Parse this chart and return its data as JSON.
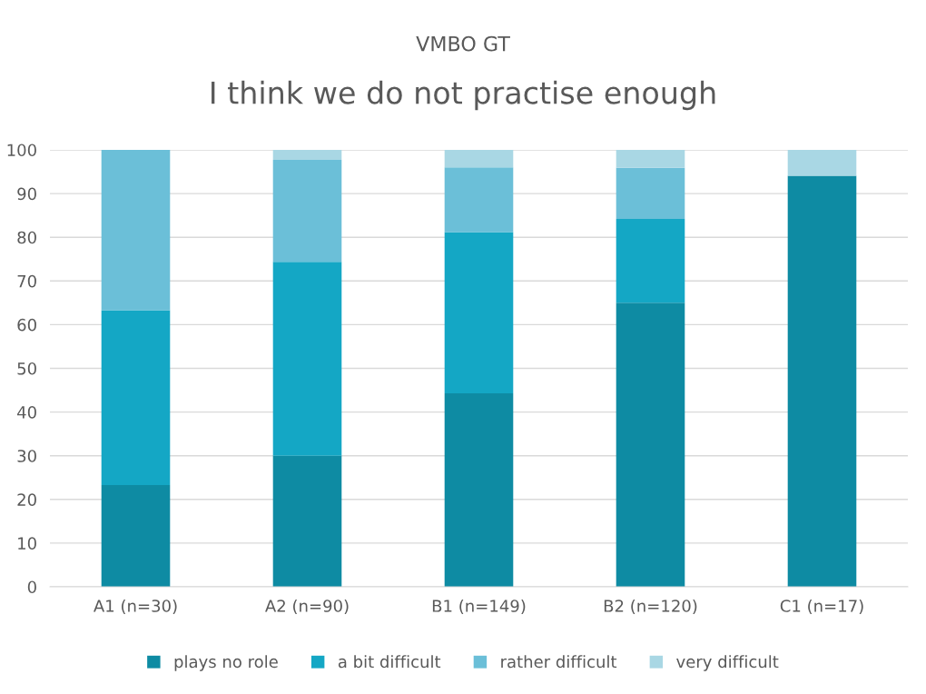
{
  "chart_data": {
    "type": "bar",
    "stacked": true,
    "title": "VMBO GT",
    "subtitle": "I think we do not practise enough",
    "categories": [
      "A1 (n=30)",
      "A2 (n=90)",
      "B1 (n=149)",
      "B2 (n=120)",
      "C1 (n=17)"
    ],
    "series": [
      {
        "name": "plays no role",
        "color": "#0e8ba3",
        "values": [
          23.3,
          30,
          44.3,
          65,
          94.1
        ]
      },
      {
        "name": "a bit difficult",
        "color": "#14a7c5",
        "values": [
          40,
          44.4,
          36.9,
          19.2,
          0
        ]
      },
      {
        "name": "rather difficult",
        "color": "#6bbfd8",
        "values": [
          36.7,
          23.3,
          14.8,
          11.7,
          0
        ]
      },
      {
        "name": "very difficult",
        "color": "#a9d7e4",
        "values": [
          0,
          2.3,
          4,
          4.1,
          5.9
        ]
      }
    ],
    "ylim": [
      0,
      100
    ],
    "yticks": [
      0,
      10,
      20,
      30,
      40,
      50,
      60,
      70,
      80,
      90,
      100
    ],
    "grid": "y",
    "legend": "bottom"
  }
}
